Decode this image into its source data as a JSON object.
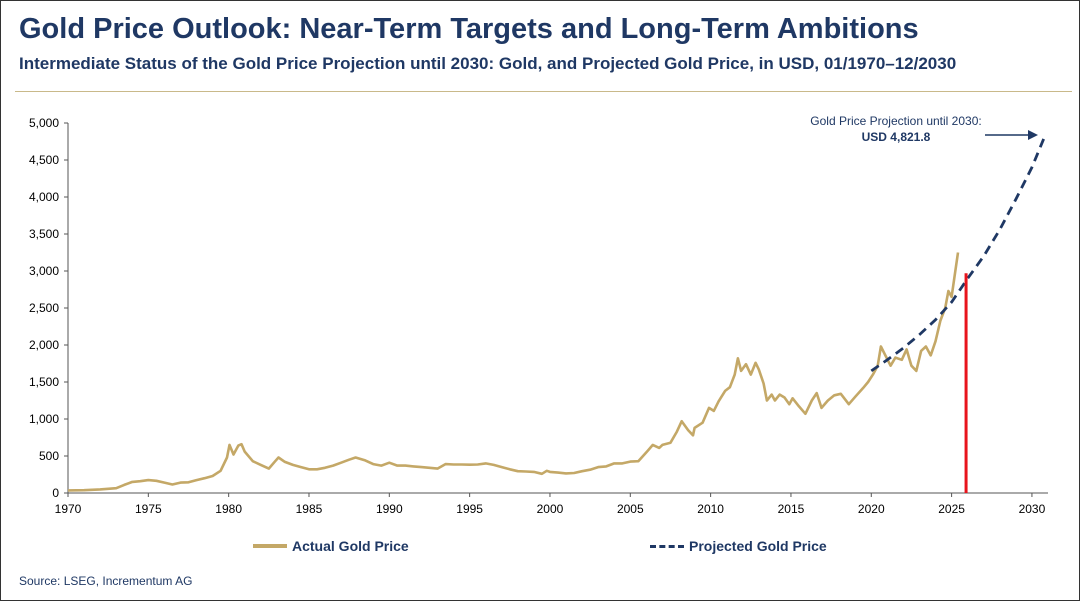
{
  "header": {
    "title": "Gold Price Outlook: Near-Term Targets and Long-Term Ambitions",
    "subtitle": "Intermediate Status of the Gold Price Projection until 2030: Gold, and Projected Gold Price, in USD, 01/1970–12/2030"
  },
  "source": "Source: LSEG, Incrementum AG",
  "colors": {
    "actual": "#c4a867",
    "projected": "#1f3864",
    "marker": "#e8141c",
    "text": "#1f3864"
  },
  "chart_data": {
    "type": "line",
    "xlim": [
      1970,
      2031
    ],
    "ylim": [
      0,
      5000
    ],
    "x_ticks": [
      1970,
      1975,
      1980,
      1985,
      1990,
      1995,
      2000,
      2005,
      2010,
      2015,
      2020,
      2025,
      2030
    ],
    "y_ticks": [
      0,
      500,
      1000,
      1500,
      2000,
      2500,
      3000,
      3500,
      4000,
      4500,
      5000
    ],
    "y_tick_labels": [
      "0",
      "500",
      "1,000",
      "1,500",
      "2,000",
      "2,500",
      "3,000",
      "3,500",
      "4,000",
      "4,500",
      "5,000"
    ],
    "legend_position": "bottom",
    "grid": false,
    "series": [
      {
        "name": "Actual Gold Price",
        "style": "solid",
        "points": [
          [
            1970.0,
            35
          ],
          [
            1971.0,
            38
          ],
          [
            1972.0,
            48
          ],
          [
            1973.0,
            65
          ],
          [
            1973.5,
            110
          ],
          [
            1974.0,
            150
          ],
          [
            1974.5,
            160
          ],
          [
            1975.0,
            175
          ],
          [
            1975.5,
            165
          ],
          [
            1976.0,
            140
          ],
          [
            1976.5,
            115
          ],
          [
            1977.0,
            140
          ],
          [
            1977.5,
            145
          ],
          [
            1978.0,
            175
          ],
          [
            1978.5,
            200
          ],
          [
            1979.0,
            230
          ],
          [
            1979.5,
            300
          ],
          [
            1979.9,
            480
          ],
          [
            1980.05,
            650
          ],
          [
            1980.3,
            520
          ],
          [
            1980.6,
            640
          ],
          [
            1980.8,
            660
          ],
          [
            1981.0,
            560
          ],
          [
            1981.5,
            430
          ],
          [
            1982.0,
            380
          ],
          [
            1982.5,
            330
          ],
          [
            1982.9,
            430
          ],
          [
            1983.1,
            480
          ],
          [
            1983.5,
            420
          ],
          [
            1984.0,
            380
          ],
          [
            1984.5,
            350
          ],
          [
            1985.0,
            320
          ],
          [
            1985.5,
            320
          ],
          [
            1986.0,
            340
          ],
          [
            1986.5,
            370
          ],
          [
            1987.0,
            410
          ],
          [
            1987.5,
            450
          ],
          [
            1987.9,
            480
          ],
          [
            1988.5,
            440
          ],
          [
            1989.0,
            390
          ],
          [
            1989.5,
            370
          ],
          [
            1990.0,
            410
          ],
          [
            1990.5,
            370
          ],
          [
            1991.0,
            370
          ],
          [
            1991.5,
            360
          ],
          [
            1992.0,
            350
          ],
          [
            1992.5,
            340
          ],
          [
            1993.0,
            330
          ],
          [
            1993.5,
            390
          ],
          [
            1994.0,
            385
          ],
          [
            1994.5,
            385
          ],
          [
            1995.0,
            383
          ],
          [
            1995.5,
            385
          ],
          [
            1996.0,
            400
          ],
          [
            1996.5,
            380
          ],
          [
            1997.0,
            350
          ],
          [
            1997.5,
            320
          ],
          [
            1998.0,
            295
          ],
          [
            1998.5,
            290
          ],
          [
            1999.0,
            285
          ],
          [
            1999.5,
            260
          ],
          [
            1999.8,
            300
          ],
          [
            2000.0,
            285
          ],
          [
            2000.5,
            275
          ],
          [
            2001.0,
            265
          ],
          [
            2001.5,
            270
          ],
          [
            2002.0,
            295
          ],
          [
            2002.5,
            315
          ],
          [
            2003.0,
            350
          ],
          [
            2003.5,
            360
          ],
          [
            2004.0,
            400
          ],
          [
            2004.5,
            400
          ],
          [
            2005.0,
            425
          ],
          [
            2005.5,
            430
          ],
          [
            2006.0,
            550
          ],
          [
            2006.4,
            650
          ],
          [
            2006.8,
            610
          ],
          [
            2007.0,
            650
          ],
          [
            2007.5,
            680
          ],
          [
            2007.9,
            830
          ],
          [
            2008.2,
            970
          ],
          [
            2008.6,
            850
          ],
          [
            2008.9,
            780
          ],
          [
            2009.0,
            880
          ],
          [
            2009.5,
            950
          ],
          [
            2009.9,
            1150
          ],
          [
            2010.2,
            1110
          ],
          [
            2010.5,
            1240
          ],
          [
            2010.9,
            1380
          ],
          [
            2011.2,
            1430
          ],
          [
            2011.5,
            1600
          ],
          [
            2011.7,
            1820
          ],
          [
            2011.9,
            1650
          ],
          [
            2012.2,
            1740
          ],
          [
            2012.5,
            1600
          ],
          [
            2012.8,
            1760
          ],
          [
            2013.0,
            1670
          ],
          [
            2013.3,
            1480
          ],
          [
            2013.5,
            1250
          ],
          [
            2013.8,
            1330
          ],
          [
            2014.0,
            1250
          ],
          [
            2014.3,
            1330
          ],
          [
            2014.6,
            1290
          ],
          [
            2014.9,
            1200
          ],
          [
            2015.1,
            1280
          ],
          [
            2015.5,
            1170
          ],
          [
            2015.9,
            1070
          ],
          [
            2016.3,
            1250
          ],
          [
            2016.6,
            1350
          ],
          [
            2016.9,
            1150
          ],
          [
            2017.3,
            1250
          ],
          [
            2017.7,
            1320
          ],
          [
            2018.1,
            1340
          ],
          [
            2018.6,
            1200
          ],
          [
            2019.0,
            1300
          ],
          [
            2019.5,
            1420
          ],
          [
            2019.8,
            1500
          ],
          [
            2020.1,
            1600
          ],
          [
            2020.4,
            1720
          ],
          [
            2020.6,
            1980
          ],
          [
            2020.9,
            1850
          ],
          [
            2021.2,
            1720
          ],
          [
            2021.5,
            1830
          ],
          [
            2021.9,
            1800
          ],
          [
            2022.2,
            1940
          ],
          [
            2022.5,
            1720
          ],
          [
            2022.8,
            1650
          ],
          [
            2023.1,
            1920
          ],
          [
            2023.4,
            1980
          ],
          [
            2023.7,
            1860
          ],
          [
            2024.0,
            2050
          ],
          [
            2024.3,
            2330
          ],
          [
            2024.6,
            2500
          ],
          [
            2024.8,
            2730
          ],
          [
            2025.0,
            2650
          ],
          [
            2025.2,
            2950
          ],
          [
            2025.4,
            3250
          ]
        ]
      },
      {
        "name": "Projected Gold Price",
        "style": "dashed",
        "points": [
          [
            2020.0,
            1650
          ],
          [
            2021.0,
            1800
          ],
          [
            2022.0,
            1960
          ],
          [
            2023.0,
            2140
          ],
          [
            2024.0,
            2340
          ],
          [
            2025.0,
            2580
          ],
          [
            2026.0,
            2900
          ],
          [
            2027.0,
            3200
          ],
          [
            2028.0,
            3560
          ],
          [
            2029.0,
            3970
          ],
          [
            2030.0,
            4400
          ],
          [
            2030.8,
            4821.8
          ]
        ]
      }
    ],
    "marker_line": {
      "x": 2025.9,
      "y": 2970
    },
    "annotation": {
      "text": "Gold Price Projection until 2030:",
      "value": "USD 4,821.8"
    }
  }
}
